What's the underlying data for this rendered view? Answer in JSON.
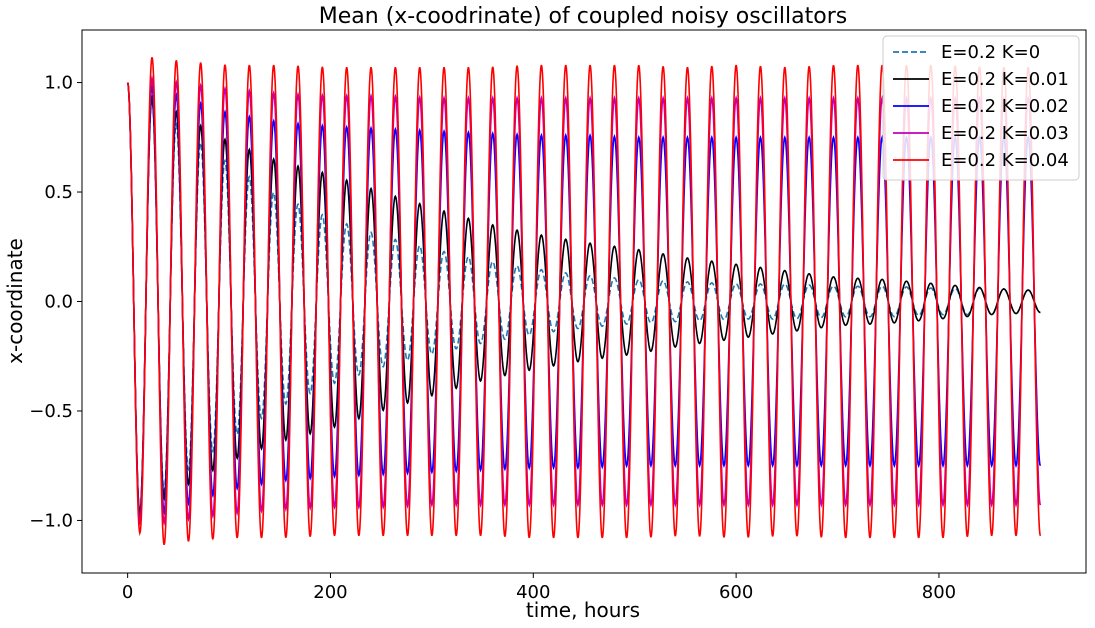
{
  "chart_data": {
    "type": "line",
    "title": "Mean (x-coodrinate) of coupled noisy oscillators",
    "xlabel": "time, hours",
    "ylabel": "x-coordinate",
    "xlim": [
      -45,
      945
    ],
    "ylim": [
      -1.24,
      1.24
    ],
    "xticks": [
      0,
      200,
      400,
      600,
      800
    ],
    "yticks": [
      -1.0,
      -0.5,
      0.0,
      0.5,
      1.0
    ],
    "xtick_labels": [
      "0",
      "200",
      "400",
      "600",
      "800"
    ],
    "ytick_labels": [
      "−1.0",
      "−0.5",
      "0.0",
      "0.5",
      "1.0"
    ],
    "grid": false,
    "legend_position": "top-right",
    "period_hours": 24,
    "x_range": [
      0,
      900
    ],
    "series": [
      {
        "name": "E=0.2 K=0",
        "color": "#1f77b4",
        "dashed": true,
        "amplitude_x": [
          0,
          25,
          50,
          100,
          150,
          200,
          250,
          300,
          350,
          400,
          450,
          500,
          550,
          600,
          650,
          700,
          750,
          800,
          850,
          900
        ],
        "amplitude_y": [
          1.0,
          0.92,
          0.8,
          0.63,
          0.48,
          0.38,
          0.3,
          0.24,
          0.19,
          0.15,
          0.12,
          0.1,
          0.09,
          0.08,
          0.08,
          0.07,
          0.07,
          0.06,
          0.06,
          0.05
        ]
      },
      {
        "name": "E=0.2 K=0.01",
        "color": "#000000",
        "dashed": false,
        "amplitude_x": [
          0,
          25,
          50,
          100,
          150,
          200,
          250,
          300,
          350,
          400,
          450,
          500,
          550,
          600,
          650,
          700,
          750,
          800,
          850,
          900
        ],
        "amplitude_y": [
          1.0,
          0.93,
          0.86,
          0.73,
          0.64,
          0.58,
          0.5,
          0.43,
          0.36,
          0.31,
          0.27,
          0.24,
          0.2,
          0.17,
          0.14,
          0.11,
          0.1,
          0.08,
          0.06,
          0.05
        ]
      },
      {
        "name": "E=0.2 K=0.02",
        "color": "#0000ff",
        "dashed": false,
        "amplitude_x": [
          0,
          25,
          50,
          100,
          150,
          200,
          250,
          300,
          350,
          400,
          450,
          500,
          550,
          600,
          650,
          700,
          750,
          800,
          850,
          900
        ],
        "amplitude_y": [
          1.0,
          0.98,
          0.94,
          0.86,
          0.82,
          0.8,
          0.79,
          0.78,
          0.77,
          0.76,
          0.76,
          0.75,
          0.75,
          0.75,
          0.75,
          0.75,
          0.75,
          0.75,
          0.75,
          0.75
        ]
      },
      {
        "name": "E=0.2 K=0.03",
        "color": "#bf00bf",
        "dashed": false,
        "amplitude_x": [
          0,
          25,
          50,
          100,
          150,
          200,
          250,
          300,
          350,
          400,
          450,
          500,
          550,
          600,
          650,
          700,
          750,
          800,
          850,
          900
        ],
        "amplitude_y": [
          1.0,
          1.02,
          1.0,
          0.97,
          0.95,
          0.94,
          0.94,
          0.93,
          0.93,
          0.93,
          0.93,
          0.93,
          0.93,
          0.93,
          0.93,
          0.93,
          0.93,
          0.93,
          0.93,
          0.93
        ]
      },
      {
        "name": "E=0.2 K=0.04",
        "color": "#ff0000",
        "dashed": false,
        "amplitude_x": [
          0,
          25,
          50,
          100,
          150,
          200,
          250,
          300,
          350,
          400,
          450,
          500,
          550,
          600,
          650,
          700,
          750,
          800,
          850,
          900
        ],
        "amplitude_y": [
          1.0,
          1.12,
          1.1,
          1.08,
          1.08,
          1.07,
          1.07,
          1.07,
          1.07,
          1.08,
          1.08,
          1.08,
          1.07,
          1.08,
          1.07,
          1.08,
          1.08,
          1.08,
          1.07,
          1.07
        ]
      }
    ]
  }
}
